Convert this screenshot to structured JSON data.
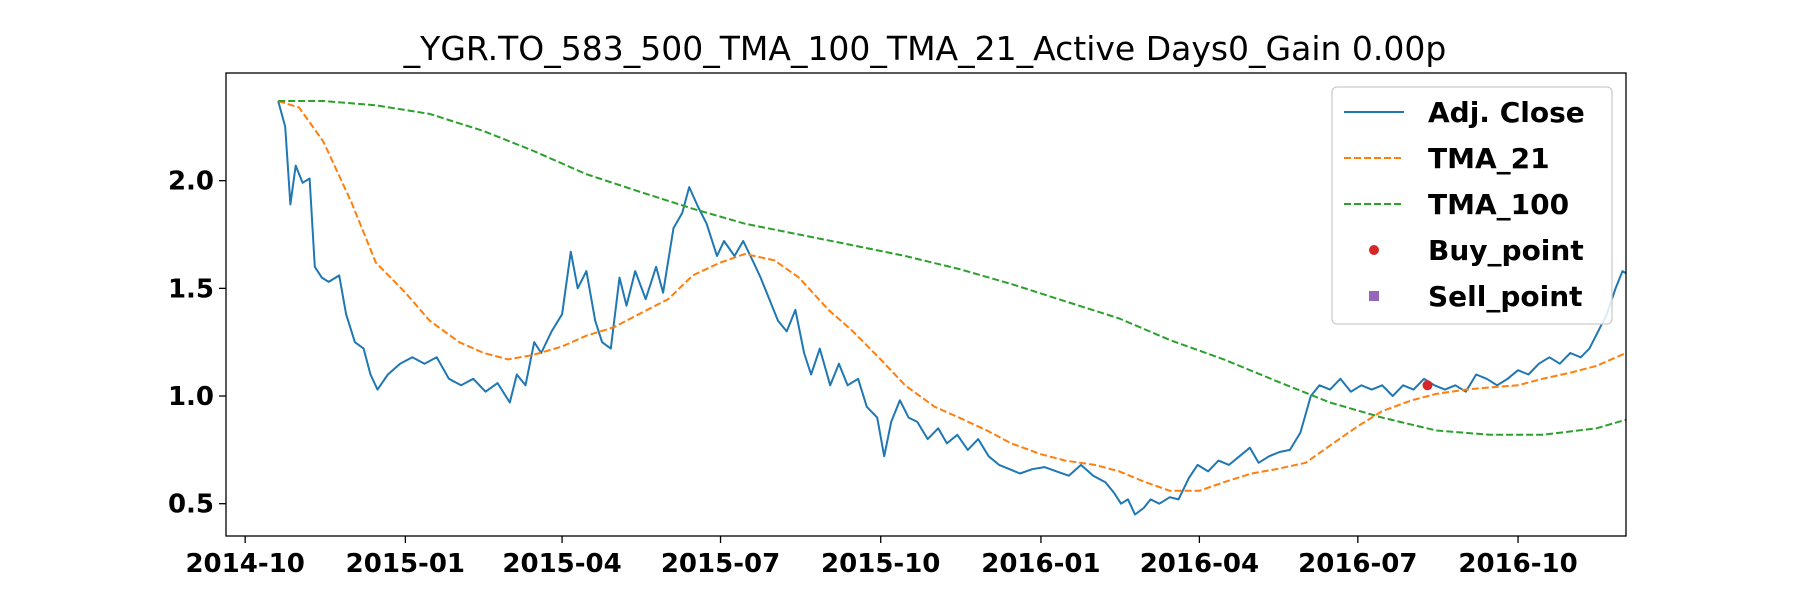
{
  "chart_data": {
    "type": "line",
    "title": "_YGR.TO_583_500_TMA_100_TMA_21_Active Days0_Gain   0.00p",
    "xlabel": "",
    "ylabel": "",
    "xlim": [
      "2014-09-20",
      "2016-12-02"
    ],
    "ylim": [
      0.35,
      2.5
    ],
    "x_ticks": [
      "2014-10",
      "2015-01",
      "2015-04",
      "2015-07",
      "2015-10",
      "2016-01",
      "2016-04",
      "2016-07",
      "2016-10"
    ],
    "y_ticks": [
      0.5,
      1.0,
      1.5,
      2.0
    ],
    "grid": false,
    "legend_position": "top-right",
    "series": [
      {
        "name": "Adj. Close",
        "style": "solid",
        "color": "#1f77b4",
        "points": [
          [
            "2014-10-20",
            2.37
          ],
          [
            "2014-10-24",
            2.25
          ],
          [
            "2014-10-27",
            1.89
          ],
          [
            "2014-10-30",
            2.07
          ],
          [
            "2014-11-03",
            1.99
          ],
          [
            "2014-11-07",
            2.01
          ],
          [
            "2014-11-10",
            1.6
          ],
          [
            "2014-11-14",
            1.55
          ],
          [
            "2014-11-18",
            1.53
          ],
          [
            "2014-11-24",
            1.56
          ],
          [
            "2014-11-28",
            1.38
          ],
          [
            "2014-12-03",
            1.25
          ],
          [
            "2014-12-08",
            1.22
          ],
          [
            "2014-12-12",
            1.1
          ],
          [
            "2014-12-16",
            1.03
          ],
          [
            "2014-12-22",
            1.1
          ],
          [
            "2014-12-29",
            1.15
          ],
          [
            "2015-01-05",
            1.18
          ],
          [
            "2015-01-12",
            1.15
          ],
          [
            "2015-01-19",
            1.18
          ],
          [
            "2015-01-26",
            1.08
          ],
          [
            "2015-02-02",
            1.05
          ],
          [
            "2015-02-09",
            1.08
          ],
          [
            "2015-02-16",
            1.02
          ],
          [
            "2015-02-23",
            1.06
          ],
          [
            "2015-03-02",
            0.97
          ],
          [
            "2015-03-06",
            1.1
          ],
          [
            "2015-03-11",
            1.05
          ],
          [
            "2015-03-16",
            1.25
          ],
          [
            "2015-03-20",
            1.2
          ],
          [
            "2015-03-26",
            1.3
          ],
          [
            "2015-04-01",
            1.38
          ],
          [
            "2015-04-06",
            1.67
          ],
          [
            "2015-04-10",
            1.5
          ],
          [
            "2015-04-15",
            1.58
          ],
          [
            "2015-04-20",
            1.35
          ],
          [
            "2015-04-24",
            1.25
          ],
          [
            "2015-04-29",
            1.22
          ],
          [
            "2015-05-04",
            1.55
          ],
          [
            "2015-05-08",
            1.42
          ],
          [
            "2015-05-13",
            1.58
          ],
          [
            "2015-05-19",
            1.45
          ],
          [
            "2015-05-25",
            1.6
          ],
          [
            "2015-05-29",
            1.48
          ],
          [
            "2015-06-04",
            1.78
          ],
          [
            "2015-06-09",
            1.85
          ],
          [
            "2015-06-13",
            1.97
          ],
          [
            "2015-06-18",
            1.88
          ],
          [
            "2015-06-23",
            1.8
          ],
          [
            "2015-06-29",
            1.65
          ],
          [
            "2015-07-03",
            1.72
          ],
          [
            "2015-07-09",
            1.65
          ],
          [
            "2015-07-14",
            1.72
          ],
          [
            "2015-07-20",
            1.62
          ],
          [
            "2015-07-24",
            1.55
          ],
          [
            "2015-07-29",
            1.45
          ],
          [
            "2015-08-03",
            1.35
          ],
          [
            "2015-08-08",
            1.3
          ],
          [
            "2015-08-13",
            1.4
          ],
          [
            "2015-08-18",
            1.2
          ],
          [
            "2015-08-22",
            1.1
          ],
          [
            "2015-08-27",
            1.22
          ],
          [
            "2015-09-02",
            1.05
          ],
          [
            "2015-09-07",
            1.15
          ],
          [
            "2015-09-12",
            1.05
          ],
          [
            "2015-09-18",
            1.08
          ],
          [
            "2015-09-23",
            0.95
          ],
          [
            "2015-09-29",
            0.9
          ],
          [
            "2015-10-03",
            0.72
          ],
          [
            "2015-10-07",
            0.88
          ],
          [
            "2015-10-12",
            0.98
          ],
          [
            "2015-10-17",
            0.9
          ],
          [
            "2015-10-22",
            0.88
          ],
          [
            "2015-10-28",
            0.8
          ],
          [
            "2015-11-03",
            0.85
          ],
          [
            "2015-11-08",
            0.78
          ],
          [
            "2015-11-14",
            0.82
          ],
          [
            "2015-11-20",
            0.75
          ],
          [
            "2015-11-26",
            0.8
          ],
          [
            "2015-12-02",
            0.72
          ],
          [
            "2015-12-08",
            0.68
          ],
          [
            "2015-12-14",
            0.66
          ],
          [
            "2015-12-20",
            0.64
          ],
          [
            "2015-12-27",
            0.66
          ],
          [
            "2016-01-03",
            0.67
          ],
          [
            "2016-01-10",
            0.65
          ],
          [
            "2016-01-17",
            0.63
          ],
          [
            "2016-01-24",
            0.68
          ],
          [
            "2016-01-31",
            0.63
          ],
          [
            "2016-02-07",
            0.6
          ],
          [
            "2016-02-12",
            0.55
          ],
          [
            "2016-02-16",
            0.5
          ],
          [
            "2016-02-20",
            0.52
          ],
          [
            "2016-02-24",
            0.45
          ],
          [
            "2016-02-29",
            0.48
          ],
          [
            "2016-03-04",
            0.52
          ],
          [
            "2016-03-09",
            0.5
          ],
          [
            "2016-03-15",
            0.53
          ],
          [
            "2016-03-20",
            0.52
          ],
          [
            "2016-03-26",
            0.62
          ],
          [
            "2016-03-31",
            0.68
          ],
          [
            "2016-04-06",
            0.65
          ],
          [
            "2016-04-12",
            0.7
          ],
          [
            "2016-04-18",
            0.68
          ],
          [
            "2016-04-24",
            0.72
          ],
          [
            "2016-04-30",
            0.76
          ],
          [
            "2016-05-05",
            0.69
          ],
          [
            "2016-05-11",
            0.72
          ],
          [
            "2016-05-17",
            0.74
          ],
          [
            "2016-05-23",
            0.75
          ],
          [
            "2016-05-29",
            0.83
          ],
          [
            "2016-06-04",
            1.0
          ],
          [
            "2016-06-09",
            1.05
          ],
          [
            "2016-06-15",
            1.03
          ],
          [
            "2016-06-21",
            1.08
          ],
          [
            "2016-06-27",
            1.02
          ],
          [
            "2016-07-03",
            1.05
          ],
          [
            "2016-07-09",
            1.03
          ],
          [
            "2016-07-15",
            1.05
          ],
          [
            "2016-07-21",
            1.0
          ],
          [
            "2016-07-27",
            1.05
          ],
          [
            "2016-08-02",
            1.03
          ],
          [
            "2016-08-08",
            1.08
          ],
          [
            "2016-08-14",
            1.05
          ],
          [
            "2016-08-20",
            1.03
          ],
          [
            "2016-08-26",
            1.05
          ],
          [
            "2016-09-01",
            1.02
          ],
          [
            "2016-09-07",
            1.1
          ],
          [
            "2016-09-13",
            1.08
          ],
          [
            "2016-09-19",
            1.05
          ],
          [
            "2016-09-25",
            1.08
          ],
          [
            "2016-10-01",
            1.12
          ],
          [
            "2016-10-07",
            1.1
          ],
          [
            "2016-10-13",
            1.15
          ],
          [
            "2016-10-19",
            1.18
          ],
          [
            "2016-10-25",
            1.15
          ],
          [
            "2016-10-31",
            1.2
          ],
          [
            "2016-11-06",
            1.18
          ],
          [
            "2016-11-11",
            1.22
          ],
          [
            "2016-11-16",
            1.3
          ],
          [
            "2016-11-21",
            1.38
          ],
          [
            "2016-11-26",
            1.5
          ],
          [
            "2016-11-30",
            1.58
          ],
          [
            "2016-12-02",
            1.57
          ]
        ]
      },
      {
        "name": "TMA_21",
        "style": "dashed",
        "color": "#ff7f0e",
        "points": [
          [
            "2014-10-20",
            2.37
          ],
          [
            "2014-11-01",
            2.34
          ],
          [
            "2014-11-15",
            2.18
          ],
          [
            "2014-12-01",
            1.9
          ],
          [
            "2014-12-15",
            1.62
          ],
          [
            "2015-01-01",
            1.48
          ],
          [
            "2015-01-15",
            1.35
          ],
          [
            "2015-02-01",
            1.25
          ],
          [
            "2015-02-15",
            1.2
          ],
          [
            "2015-03-01",
            1.17
          ],
          [
            "2015-03-15",
            1.19
          ],
          [
            "2015-04-01",
            1.23
          ],
          [
            "2015-04-15",
            1.28
          ],
          [
            "2015-05-01",
            1.32
          ],
          [
            "2015-05-15",
            1.38
          ],
          [
            "2015-06-01",
            1.45
          ],
          [
            "2015-06-15",
            1.56
          ],
          [
            "2015-07-01",
            1.62
          ],
          [
            "2015-07-15",
            1.66
          ],
          [
            "2015-08-01",
            1.63
          ],
          [
            "2015-08-15",
            1.55
          ],
          [
            "2015-09-01",
            1.4
          ],
          [
            "2015-09-15",
            1.3
          ],
          [
            "2015-10-01",
            1.17
          ],
          [
            "2015-10-15",
            1.05
          ],
          [
            "2015-11-01",
            0.95
          ],
          [
            "2015-11-15",
            0.9
          ],
          [
            "2015-12-01",
            0.84
          ],
          [
            "2015-12-15",
            0.78
          ],
          [
            "2016-01-01",
            0.73
          ],
          [
            "2016-01-15",
            0.7
          ],
          [
            "2016-02-01",
            0.68
          ],
          [
            "2016-02-15",
            0.65
          ],
          [
            "2016-03-01",
            0.6
          ],
          [
            "2016-03-15",
            0.56
          ],
          [
            "2016-04-01",
            0.56
          ],
          [
            "2016-04-15",
            0.6
          ],
          [
            "2016-05-01",
            0.64
          ],
          [
            "2016-05-15",
            0.66
          ],
          [
            "2016-06-01",
            0.69
          ],
          [
            "2016-06-15",
            0.77
          ],
          [
            "2016-07-01",
            0.86
          ],
          [
            "2016-07-15",
            0.93
          ],
          [
            "2016-08-01",
            0.98
          ],
          [
            "2016-08-15",
            1.01
          ],
          [
            "2016-09-01",
            1.03
          ],
          [
            "2016-09-15",
            1.04
          ],
          [
            "2016-10-01",
            1.05
          ],
          [
            "2016-10-15",
            1.08
          ],
          [
            "2016-11-01",
            1.11
          ],
          [
            "2016-11-15",
            1.14
          ],
          [
            "2016-12-02",
            1.2
          ]
        ]
      },
      {
        "name": "TMA_100",
        "style": "dashed",
        "color": "#2ca02c",
        "points": [
          [
            "2014-10-20",
            2.37
          ],
          [
            "2014-11-15",
            2.37
          ],
          [
            "2014-12-15",
            2.35
          ],
          [
            "2015-01-15",
            2.31
          ],
          [
            "2015-02-15",
            2.23
          ],
          [
            "2015-03-15",
            2.14
          ],
          [
            "2015-04-15",
            2.03
          ],
          [
            "2015-05-15",
            1.95
          ],
          [
            "2015-06-15",
            1.87
          ],
          [
            "2015-07-15",
            1.8
          ],
          [
            "2015-08-15",
            1.75
          ],
          [
            "2015-09-15",
            1.7
          ],
          [
            "2015-10-15",
            1.65
          ],
          [
            "2015-11-15",
            1.59
          ],
          [
            "2015-12-15",
            1.52
          ],
          [
            "2016-01-15",
            1.44
          ],
          [
            "2016-02-15",
            1.36
          ],
          [
            "2016-03-15",
            1.26
          ],
          [
            "2016-04-15",
            1.17
          ],
          [
            "2016-05-15",
            1.07
          ],
          [
            "2016-06-15",
            0.97
          ],
          [
            "2016-07-15",
            0.9
          ],
          [
            "2016-08-15",
            0.84
          ],
          [
            "2016-09-15",
            0.82
          ],
          [
            "2016-10-15",
            0.82
          ],
          [
            "2016-11-15",
            0.85
          ],
          [
            "2016-12-02",
            0.89
          ]
        ]
      }
    ],
    "markers": [
      {
        "name": "Buy_point",
        "marker": "circle",
        "color": "#d62728",
        "points": [
          [
            "2016-08-10",
            1.05
          ]
        ]
      },
      {
        "name": "Sell_point",
        "marker": "square",
        "color": "#9467bd",
        "points": []
      }
    ],
    "legend": [
      "Adj. Close",
      "TMA_21",
      "TMA_100",
      "Buy_point",
      "Sell_point"
    ]
  }
}
